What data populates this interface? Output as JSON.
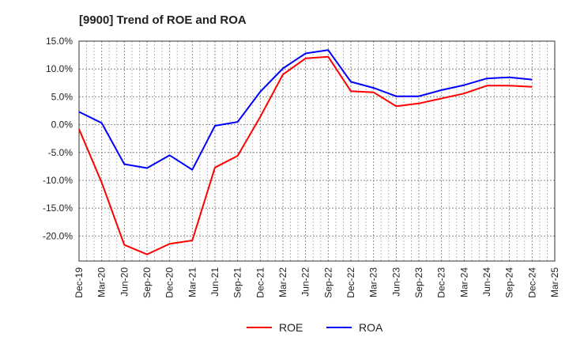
{
  "chart_data": {
    "type": "line",
    "title": "[9900]  Trend of ROE and ROA",
    "xlabel": "",
    "ylabel": "",
    "categories": [
      "Dec-19",
      "Mar-20",
      "Jun-20",
      "Sep-20",
      "Dec-20",
      "Mar-21",
      "Jun-21",
      "Sep-21",
      "Dec-21",
      "Mar-22",
      "Jun-22",
      "Sep-22",
      "Dec-22",
      "Mar-23",
      "Jun-23",
      "Sep-23",
      "Dec-23",
      "Mar-24",
      "Jun-24",
      "Sep-24",
      "Dec-24",
      "Mar-25"
    ],
    "ylim": [
      -24.5,
      15.0
    ],
    "yticks": [
      15.0,
      10.0,
      5.0,
      0.0,
      -5.0,
      -10.0,
      -15.0,
      -20.0
    ],
    "ytick_labels": [
      "15.0%",
      "10.0%",
      "5.0%",
      "0.0%",
      "-5.0%",
      "-10.0%",
      "-15.0%",
      "-20.0%"
    ],
    "grid": true,
    "legend_position": "bottom",
    "series": [
      {
        "name": "ROE",
        "color": "#ff0000",
        "values": [
          -0.8,
          -10.4,
          -21.6,
          -23.3,
          -21.4,
          -20.8,
          -7.7,
          -5.6,
          1.4,
          9.0,
          11.9,
          12.2,
          6.0,
          5.8,
          3.3,
          3.8,
          4.7,
          5.6,
          7.0,
          7.0,
          6.8,
          null
        ]
      },
      {
        "name": "ROA",
        "color": "#0000ff",
        "values": [
          2.3,
          0.3,
          -7.1,
          -7.8,
          -5.5,
          -8.1,
          -0.2,
          0.5,
          5.9,
          10.1,
          12.8,
          13.4,
          7.7,
          6.6,
          5.1,
          5.1,
          6.2,
          7.1,
          8.3,
          8.5,
          8.1,
          null
        ]
      }
    ]
  }
}
